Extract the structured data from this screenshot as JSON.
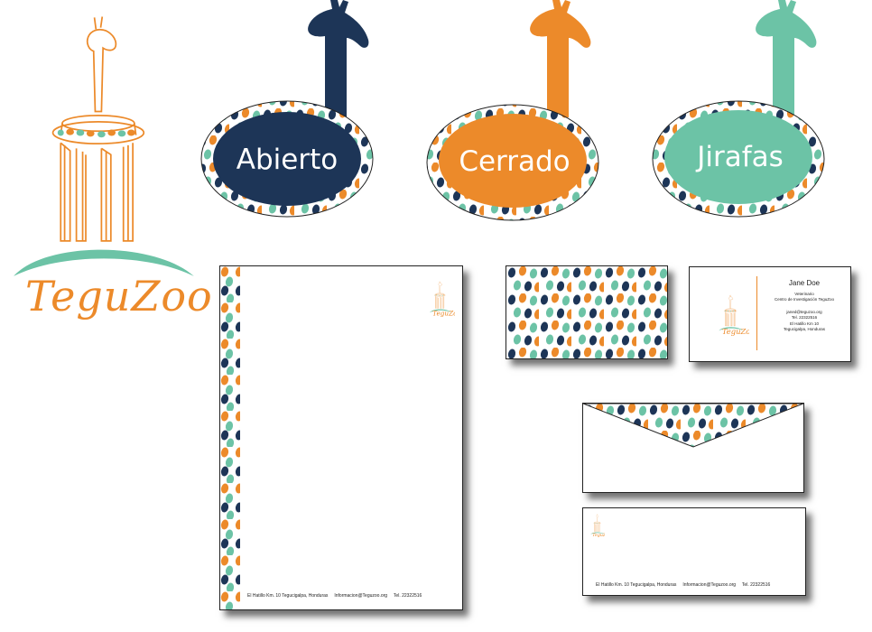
{
  "brand": {
    "name": "TeguZoo",
    "colors": {
      "navy": "#1d3557",
      "orange": "#ec8a2a",
      "mint": "#6cc3a6"
    }
  },
  "signs": [
    {
      "label": "Abierto",
      "color": "#1d3557",
      "name": "sign-abierto"
    },
    {
      "label": "Cerrado",
      "color": "#ec8a2a",
      "name": "sign-cerrado"
    },
    {
      "label": "Jirafas",
      "color": "#6cc3a6",
      "name": "sign-jirafas"
    }
  ],
  "letterhead": {
    "footer": "El Hatillo Km. 10 Tegucigalpa, Honduras     Informacion@Teguzoo.org     Tel. 22322516"
  },
  "business_card": {
    "name": "Jane Doe",
    "title": "Veterinario",
    "org": "Centro de Investigación TeguZoo",
    "email": "janed@teguzoo.org",
    "tel": "Tel. 22322516",
    "address1": "El Hatillo Km 10",
    "address2": "Tegucigalpa, Honduras"
  },
  "envelope": {
    "footer": "El Hatillo Km. 10 Tegucigalpa, Honduras     Informacion@Teguzoo.org     Tel. 22322516"
  }
}
